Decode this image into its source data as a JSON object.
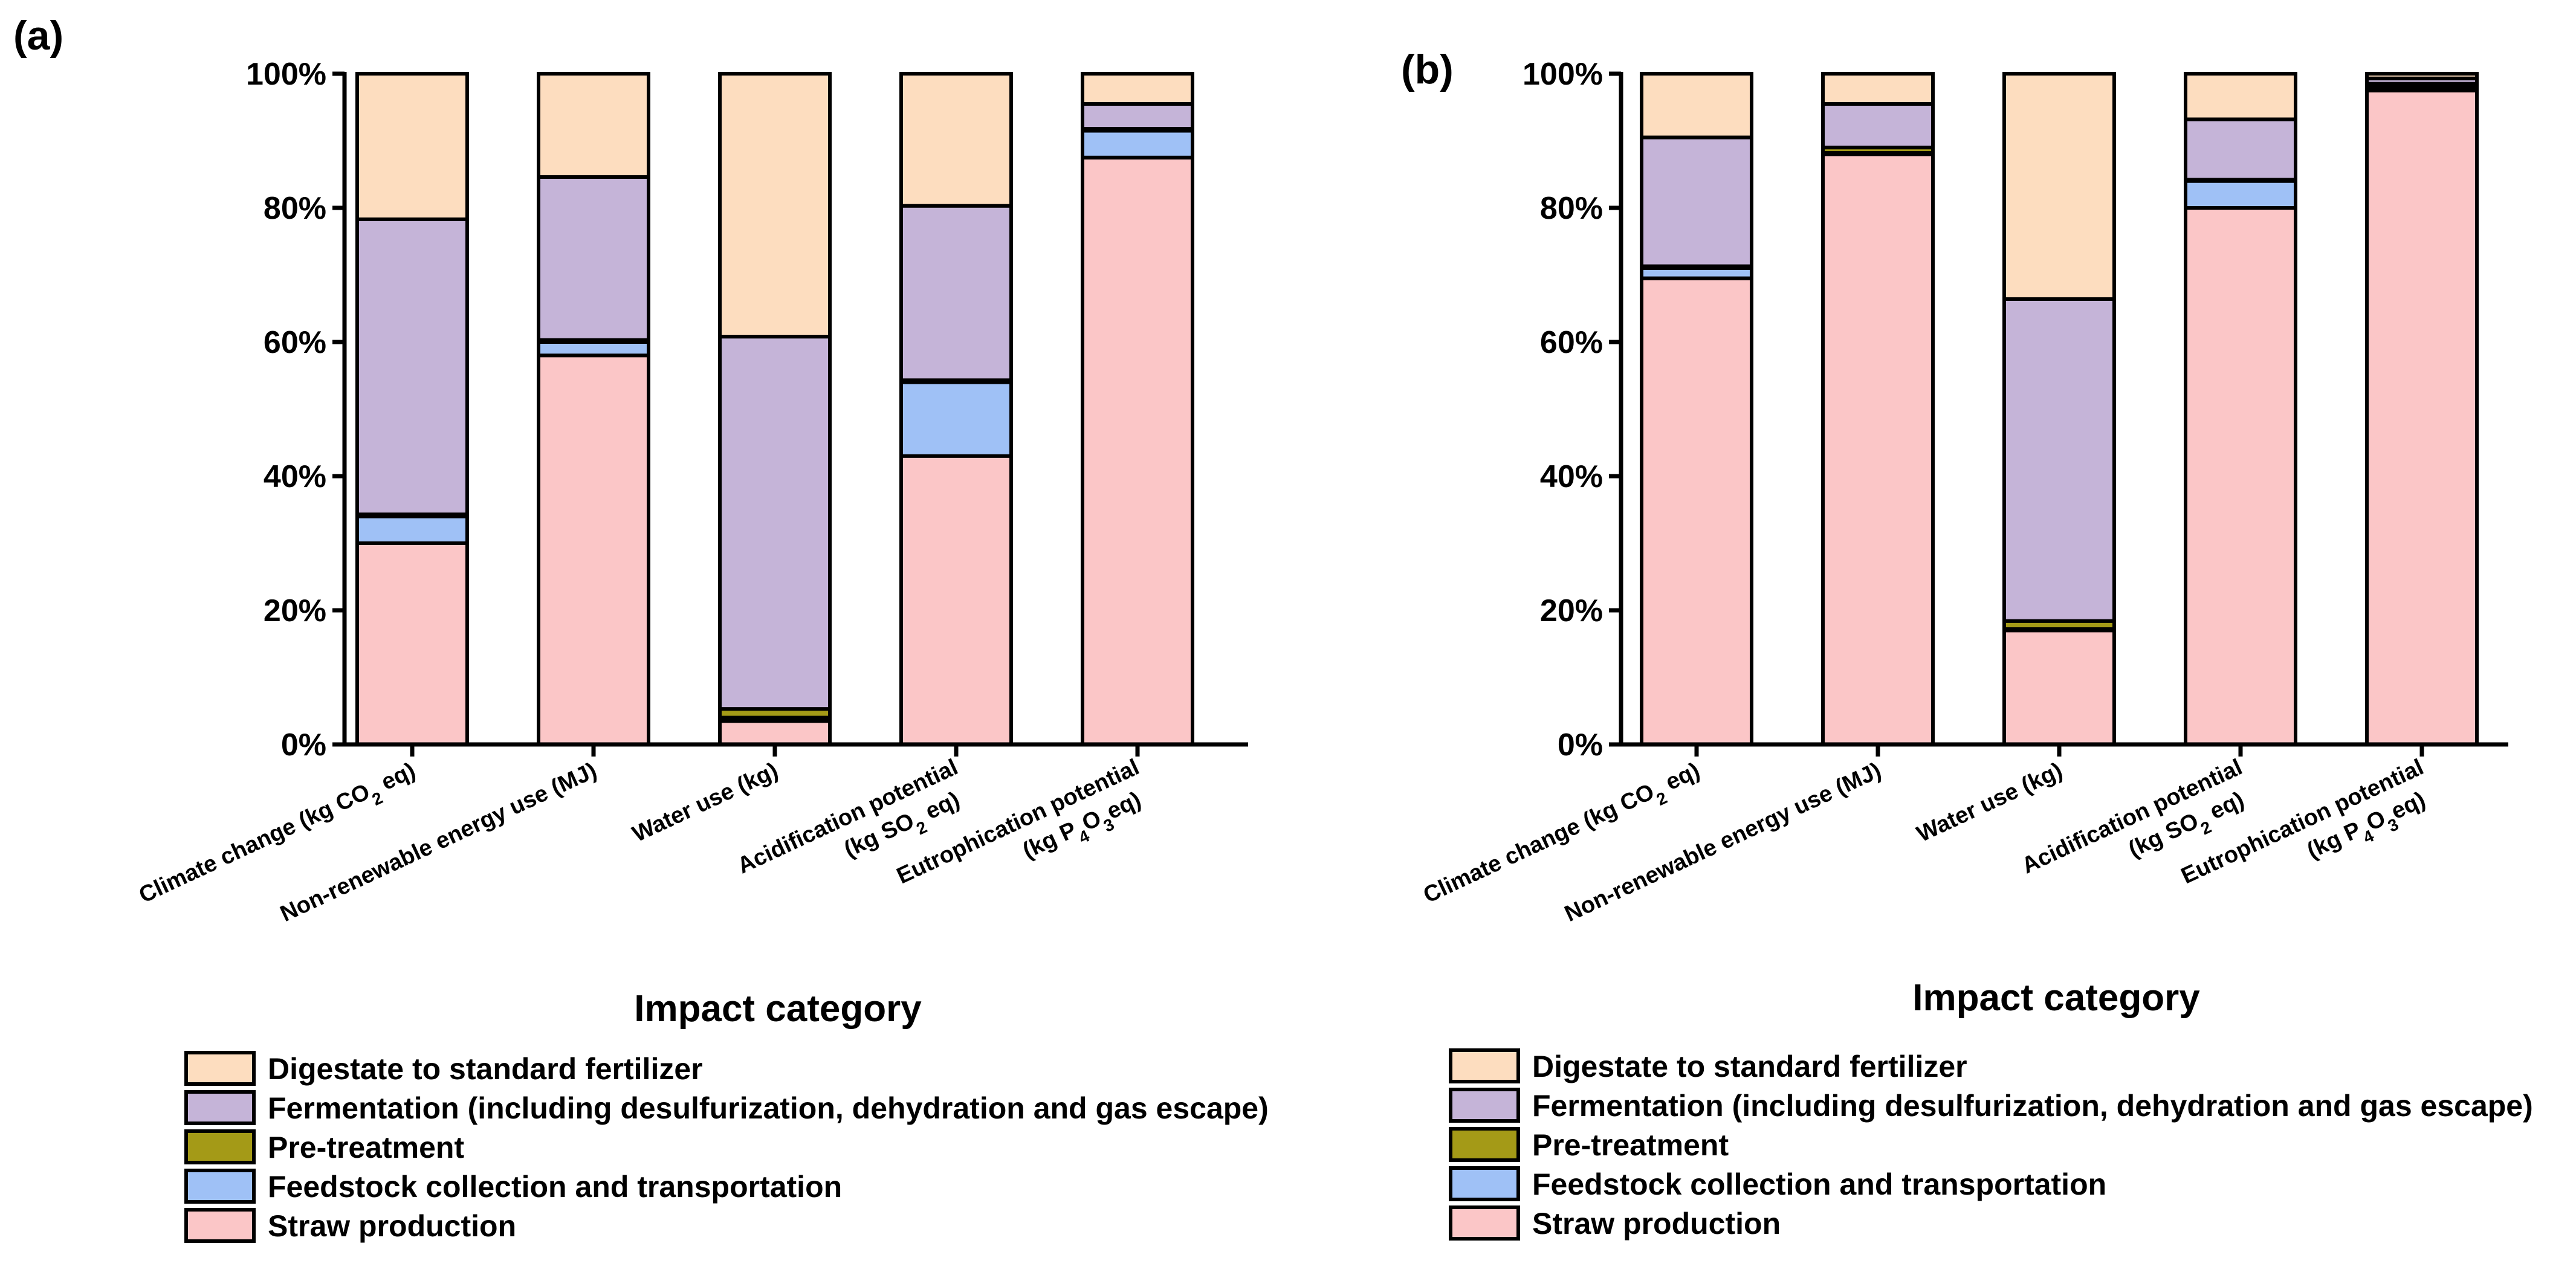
{
  "chart_data": [
    {
      "panel": "(a)",
      "type": "bar",
      "stacked": true,
      "categories": [
        "Climate change (kg CO2 eq)",
        "Non-renewable energy use (MJ)",
        "Water use (kg)",
        "Acidification potential (kg SO2 eq)",
        "Eutrophication potential (kg P4O3eq)"
      ],
      "series": [
        {
          "name": "Straw production",
          "values": [
            30,
            58,
            3.5,
            43,
            87.5
          ]
        },
        {
          "name": "Feedstock collection and transportation",
          "values": [
            4,
            2,
            0.5,
            11,
            4
          ]
        },
        {
          "name": "Pre-treatment",
          "values": [
            0.3,
            0.3,
            1.3,
            0.3,
            0.3
          ]
        },
        {
          "name": "Fermentation (including desulfurization, dehydration and gas escape)",
          "values": [
            44,
            24.3,
            55.5,
            26,
            3.7
          ]
        },
        {
          "name": "Digestate to standard fertilizer",
          "values": [
            21.7,
            15.4,
            39.2,
            19.7,
            4.5
          ]
        }
      ],
      "ylim": [
        0,
        100
      ],
      "yticks": [
        "0%",
        "20%",
        "40%",
        "60%",
        "80%",
        "100%"
      ],
      "xlabel": "Impact category",
      "ylabel": ""
    },
    {
      "panel": "(b)",
      "type": "bar",
      "stacked": true,
      "categories": [
        "Climate change (kg CO2 eq)",
        "Non-renewable energy use (MJ)",
        "Water use (kg)",
        "Acidification potential (kg SO2 eq)",
        "Eutrophication potential (kg P4O3eq)"
      ],
      "series": [
        {
          "name": "Straw production",
          "values": [
            69.5,
            88,
            17,
            80,
            97.5
          ]
        },
        {
          "name": "Feedstock collection and transportation",
          "values": [
            1.5,
            0.2,
            0.2,
            4,
            0.5
          ]
        },
        {
          "name": "Pre-treatment",
          "values": [
            0.3,
            0.8,
            1.2,
            0.2,
            0.5
          ]
        },
        {
          "name": "Fermentation (including desulfurization, dehydration and gas escape)",
          "values": [
            19.2,
            6.5,
            48,
            9,
            0.8
          ]
        },
        {
          "name": "Digestate to standard fertilizer",
          "values": [
            9.5,
            4.5,
            33.6,
            6.8,
            0.7
          ]
        }
      ],
      "ylim": [
        0,
        100
      ],
      "yticks": [
        "0%",
        "20%",
        "40%",
        "60%",
        "80%",
        "100%"
      ],
      "xlabel": "Impact category",
      "ylabel": ""
    }
  ],
  "category_labels": [
    {
      "main": "Climate change (kg CO",
      "sub": "2",
      "tail": " eq)"
    },
    {
      "text": "Non-renewable energy use (MJ)"
    },
    {
      "text": "Water use (kg)"
    },
    {
      "line1": "Acidification potential",
      "line2_pre": "(kg SO",
      "line2_sub": "2",
      "line2_tail": " eq)"
    },
    {
      "line1": "Eutrophication potential",
      "line2_pre": "(kg P",
      "line2_sub1": "4",
      "line2_mid": "O",
      "line2_sub2": "3",
      "line2_tail": "eq)"
    }
  ],
  "legend": [
    {
      "label": "Digestate to standard fertilizer",
      "color": "#FDDDBF"
    },
    {
      "label": "Fermentation (including desulfurization, dehydration and gas escape)",
      "color": "#C5B4D8"
    },
    {
      "label": "Pre-treatment",
      "color": "#A49A17"
    },
    {
      "label": "Feedstock collection and transportation",
      "color": "#9FC1F6"
    },
    {
      "label": "Straw production",
      "color": "#FBC6C7"
    }
  ],
  "colors": {
    "Straw production": "#FBC6C7",
    "Feedstock collection and transportation": "#9FC1F6",
    "Pre-treatment": "#A49A17",
    "Fermentation (including desulfurization, dehydration and gas escape)": "#C5B4D8",
    "Digestate to standard fertilizer": "#FDDDBF"
  }
}
